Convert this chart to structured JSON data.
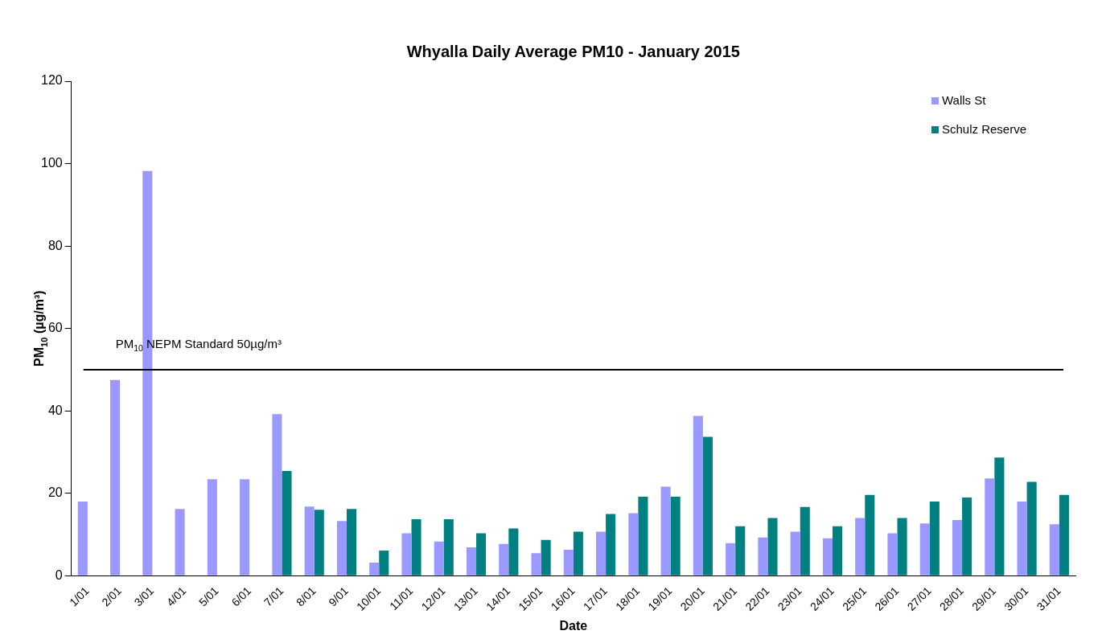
{
  "chart_data": {
    "type": "bar",
    "title": "Whyalla Daily Average PM10 - January 2015",
    "xlabel": "Date",
    "ylabel": "PM$_{10}$ (µg/m³)",
    "categories": [
      "1/01",
      "2/01",
      "3/01",
      "4/01",
      "5/01",
      "6/01",
      "7/01",
      "8/01",
      "9/01",
      "10/01",
      "11/01",
      "12/01",
      "13/01",
      "14/01",
      "15/01",
      "16/01",
      "17/01",
      "18/01",
      "19/01",
      "20/01",
      "21/01",
      "22/01",
      "23/01",
      "24/01",
      "25/01",
      "26/01",
      "27/01",
      "28/01",
      "29/01",
      "30/01",
      "31/01"
    ],
    "series": [
      {
        "name": "Walls St",
        "color": "#9999ff",
        "values": [
          18.0,
          47.5,
          98.2,
          16.2,
          23.4,
          23.4,
          39.2,
          16.8,
          13.3,
          3.2,
          10.3,
          8.3,
          6.9,
          7.7,
          5.5,
          6.3,
          10.7,
          15.2,
          21.6,
          38.8,
          7.9,
          9.3,
          10.7,
          9.1,
          14.0,
          10.3,
          12.7,
          13.5,
          23.6,
          18.0,
          12.5
        ]
      },
      {
        "name": "Schulz Reserve",
        "color": "#008080",
        "values": [
          null,
          null,
          null,
          null,
          null,
          null,
          25.4,
          16.0,
          16.2,
          6.1,
          13.7,
          13.7,
          10.3,
          11.5,
          8.7,
          10.7,
          15.0,
          19.2,
          19.2,
          33.7,
          12.0,
          14.0,
          16.7,
          12.0,
          19.6,
          14.0,
          18.0,
          19.0,
          28.7,
          22.8,
          19.6
        ]
      }
    ],
    "ylim": [
      0,
      120
    ],
    "yticks": [
      0,
      20,
      40,
      60,
      80,
      100,
      120
    ],
    "grid": false,
    "legend": "top right",
    "ref_lines": [
      {
        "axis": "y",
        "value": 50,
        "label": "PM$_{10}$ NEPM Standard 50µg/m³",
        "color": "#000000"
      }
    ]
  }
}
